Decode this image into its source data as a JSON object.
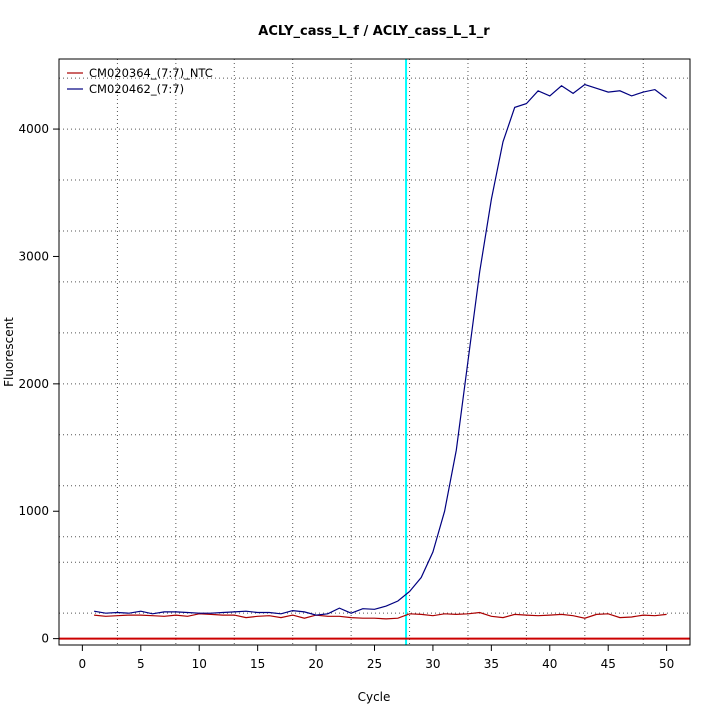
{
  "chart_data": {
    "type": "line",
    "title": "ACLY_cass_L_f / ACLY_cass_L_1_r",
    "xlabel": "Cycle",
    "ylabel": "Fluorescent",
    "xlim": [
      -2,
      52
    ],
    "ylim": [
      -50,
      4550
    ],
    "x_ticks": [
      0,
      5,
      10,
      15,
      20,
      25,
      30,
      35,
      40,
      45,
      50
    ],
    "y_ticks": [
      0,
      1000,
      2000,
      3000,
      4000
    ],
    "x_grid": [
      3,
      8,
      13,
      18,
      23,
      28,
      33,
      38,
      43,
      48
    ],
    "y_grid": [
      -100,
      200,
      600,
      800,
      1200,
      1600,
      2000,
      2400,
      2800,
      3200,
      3600,
      4000,
      4400
    ],
    "grid": true,
    "legend_position": "top-left",
    "threshold": {
      "cycle": 27.7,
      "color": "#00ffff"
    },
    "baseline": {
      "value": 0,
      "color": "#cc0000"
    },
    "x": [
      1,
      2,
      3,
      4,
      5,
      6,
      7,
      8,
      9,
      10,
      11,
      12,
      13,
      14,
      15,
      16,
      17,
      18,
      19,
      20,
      21,
      22,
      23,
      24,
      25,
      26,
      27,
      28,
      29,
      30,
      31,
      32,
      33,
      34,
      35,
      36,
      37,
      38,
      39,
      40,
      41,
      42,
      43,
      44,
      45,
      46,
      47,
      48,
      49,
      50
    ],
    "series": [
      {
        "name": "CM020364_(7:7)_NTC",
        "color": "#aa0000",
        "values": [
          185,
          175,
          180,
          185,
          185,
          180,
          175,
          185,
          175,
          195,
          190,
          185,
          185,
          165,
          175,
          180,
          165,
          185,
          160,
          185,
          175,
          175,
          165,
          160,
          160,
          155,
          160,
          195,
          190,
          180,
          195,
          190,
          195,
          205,
          175,
          165,
          190,
          185,
          180,
          185,
          190,
          180,
          160,
          190,
          195,
          165,
          170,
          185,
          180,
          190
        ]
      },
      {
        "name": "CM020462_(7:7)",
        "color": "#000080",
        "values": [
          215,
          200,
          205,
          200,
          215,
          195,
          210,
          210,
          205,
          200,
          200,
          205,
          210,
          215,
          205,
          205,
          195,
          220,
          210,
          185,
          195,
          240,
          200,
          235,
          230,
          255,
          295,
          370,
          480,
          680,
          1000,
          1480,
          2180,
          2880,
          3450,
          3900,
          4170,
          4200,
          4300,
          4260,
          4340,
          4280,
          4350,
          4320,
          4290,
          4300,
          4260,
          4290,
          4310,
          4240
        ]
      }
    ]
  }
}
